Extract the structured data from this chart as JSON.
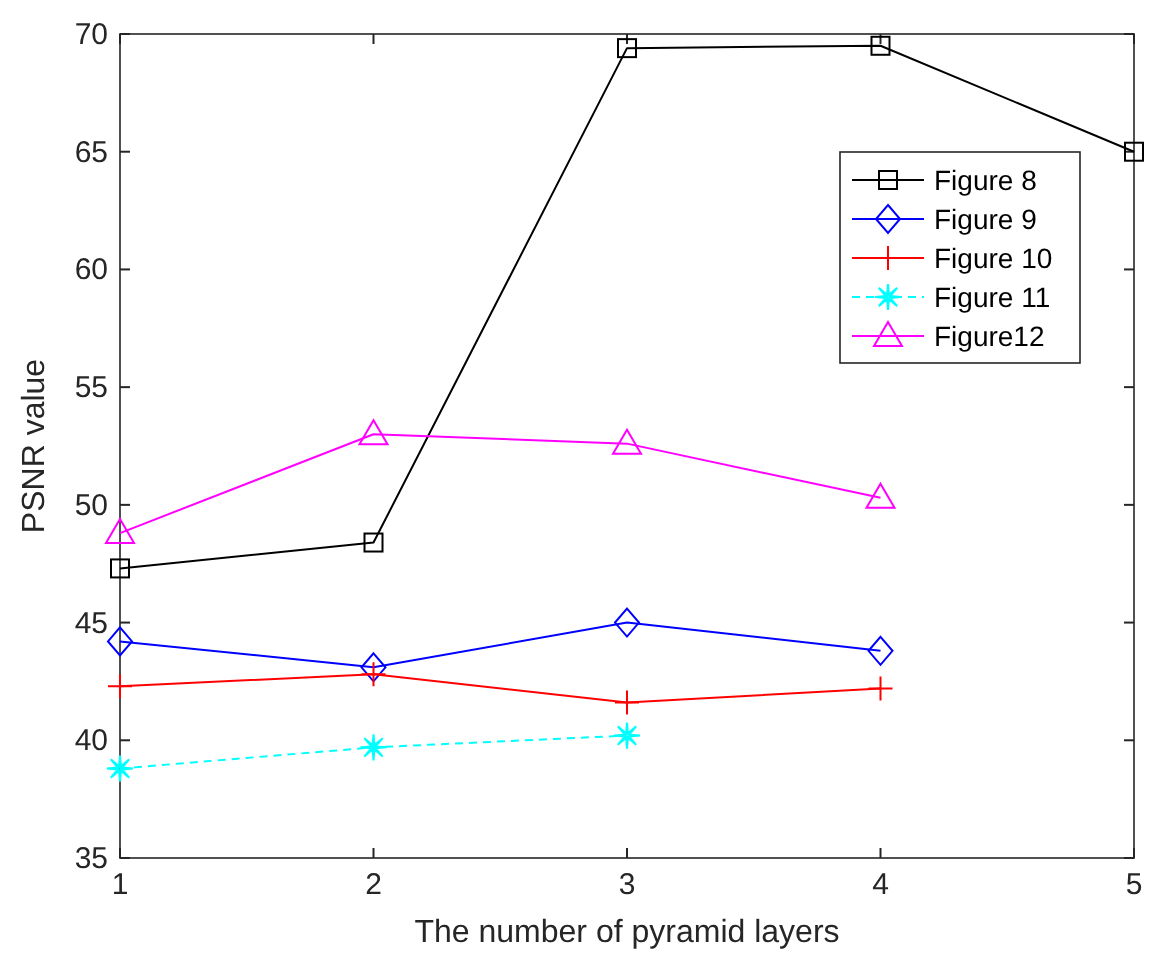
{
  "chart_data": {
    "type": "line",
    "xlabel": "The number of pyramid layers",
    "ylabel": "PSNR value",
    "xlim": [
      1,
      5
    ],
    "xticks": [
      1,
      2,
      3,
      4,
      5
    ],
    "ylim": [
      35,
      70
    ],
    "yticks": [
      35,
      40,
      45,
      50,
      55,
      60,
      65,
      70
    ],
    "grid": false,
    "legend": "top right",
    "x": [
      1,
      2,
      3,
      4,
      5
    ],
    "series": [
      {
        "name": "Figure 8",
        "color": "#000000",
        "marker": "square",
        "line_style": "solid",
        "values": [
          47.3,
          48.4,
          69.4,
          69.5,
          65
        ]
      },
      {
        "name": "Figure 9",
        "color": "#0000ff",
        "marker": "diamond",
        "line_style": "solid",
        "values": [
          44.2,
          43.1,
          45,
          43.8,
          null
        ]
      },
      {
        "name": "Figure 10",
        "color": "#ff0000",
        "marker": "cross",
        "line_style": "solid",
        "values": [
          42.3,
          42.8,
          41.6,
          42.2,
          null
        ]
      },
      {
        "name": "Figure 11",
        "color": "#00ffff",
        "marker": "star",
        "line_style": "dashed",
        "values": [
          38.8,
          39.7,
          40.2,
          null,
          null
        ]
      },
      {
        "name": "Figure12",
        "color": "#ff00ff",
        "marker": "triangle",
        "line_style": "solid",
        "values": [
          48.8,
          53,
          52.6,
          50.3,
          null
        ]
      }
    ]
  }
}
